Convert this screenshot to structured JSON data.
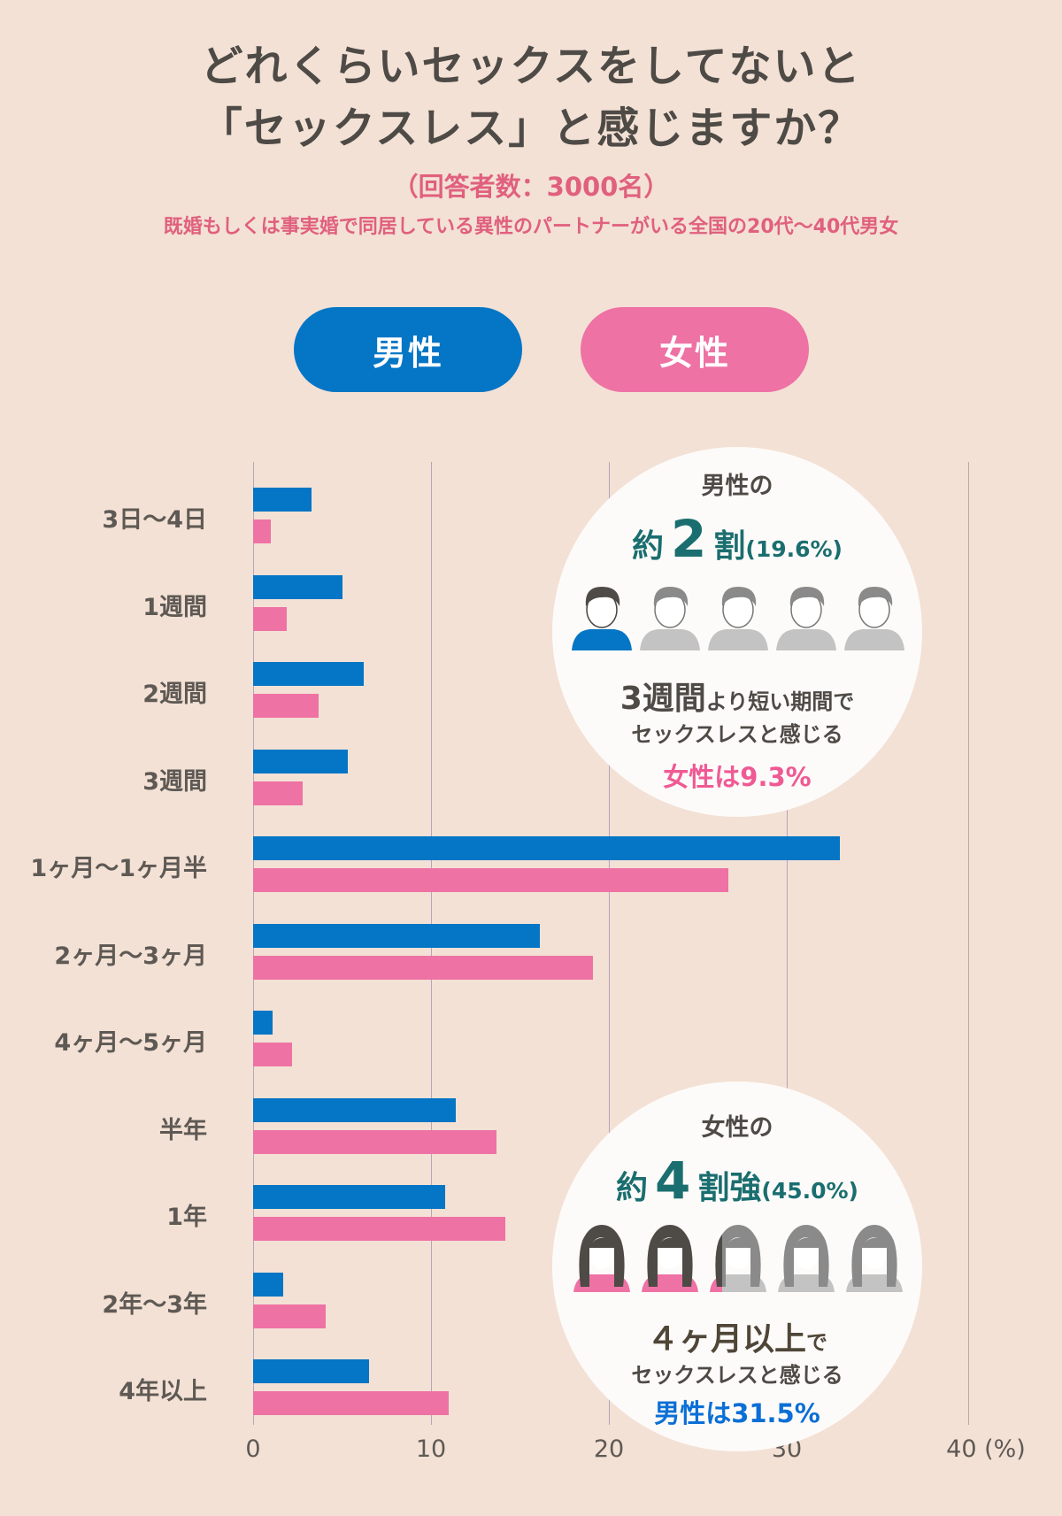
{
  "header": {
    "title_line1": "どれくらいセックスをしてないと",
    "title_line2": "「セックスレス」と感じますか？",
    "respondents": "（回答者数：3000名）",
    "description": "既婚もしくは事実婚で同居している異性のパートナーがいる全国の20代〜40代男女"
  },
  "legend": {
    "male": "男性",
    "female": "女性",
    "male_color": "#0575c5",
    "female_color": "#ee72a4"
  },
  "chart_data": {
    "type": "bar",
    "orientation": "horizontal",
    "title": "どれくらいセックスをしてないと「セックスレス」と感じますか？",
    "categories": [
      "3日〜4日",
      "1週間",
      "2週間",
      "3週間",
      "1ヶ月〜1ヶ月半",
      "2ヶ月〜3ヶ月",
      "4ヶ月〜5ヶ月",
      "半年",
      "1年",
      "2年〜3年",
      "4年以上"
    ],
    "series": [
      {
        "name": "男性",
        "color": "#0575c5",
        "values": [
          3.3,
          5.0,
          6.2,
          5.3,
          33.0,
          16.1,
          1.1,
          11.4,
          10.8,
          1.7,
          6.5
        ]
      },
      {
        "name": "女性",
        "color": "#ee72a4",
        "values": [
          1.0,
          1.9,
          3.7,
          2.8,
          26.7,
          19.1,
          2.2,
          13.7,
          14.2,
          4.1,
          11.0
        ]
      }
    ],
    "xlabel": "(%)",
    "x_ticks": [
      "0",
      "10",
      "20",
      "30",
      "40"
    ],
    "xlim": [
      0,
      40
    ],
    "grid": true,
    "legend_position": "top"
  },
  "axis": {
    "ticks": [
      "0",
      "10",
      "20",
      "30"
    ],
    "last_tick": "40 (%)"
  },
  "callout_male": {
    "head": "男性の",
    "prefix": "約",
    "number": "2",
    "suffix": "割",
    "pct": "(19.6%)",
    "line1_big": "3週間",
    "line1_small": "より短い期間で",
    "line2": "セックスレスと感じる",
    "compare": "女性は9.3%"
  },
  "callout_female": {
    "head": "女性の",
    "prefix": "約",
    "number": "4",
    "suffix": "割強",
    "pct": "(45.0%)",
    "line1_big": "４ヶ月以上",
    "line1_small": "で",
    "line2": "セックスレスと感じる",
    "compare": "男性は31.5%"
  }
}
